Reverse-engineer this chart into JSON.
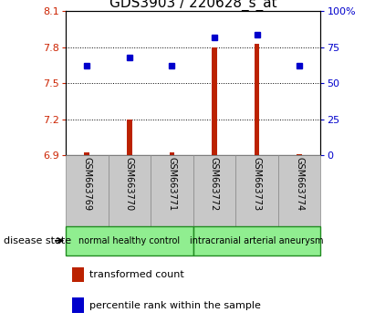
{
  "title": "GDS3903 / 220628_s_at",
  "samples": [
    "GSM663769",
    "GSM663770",
    "GSM663771",
    "GSM663772",
    "GSM663773",
    "GSM663774"
  ],
  "transformed_count": [
    6.92,
    7.2,
    6.92,
    7.8,
    7.83,
    6.91
  ],
  "percentile_rank": [
    62,
    68,
    62,
    82,
    84,
    62
  ],
  "ylim_left": [
    6.9,
    8.1
  ],
  "ylim_right": [
    0,
    100
  ],
  "yticks_left": [
    6.9,
    7.2,
    7.5,
    7.8,
    8.1
  ],
  "yticks_right": [
    0,
    25,
    50,
    75,
    100
  ],
  "bar_color": "#bb2200",
  "dot_color": "#0000cc",
  "groups": [
    {
      "label": "normal healthy control",
      "start": 0,
      "end": 3,
      "color": "#90ee90"
    },
    {
      "label": "intracranial arterial aneurysm",
      "start": 3,
      "end": 6,
      "color": "#90ee90"
    }
  ],
  "group_box_color": "#c8c8c8",
  "disease_state_label": "disease state",
  "legend_bar_label": "transformed count",
  "legend_dot_label": "percentile rank within the sample",
  "title_fontsize": 11,
  "tick_fontsize": 8,
  "left_tick_color": "#cc2200",
  "right_tick_color": "#0000cc",
  "bar_width": 0.12,
  "dot_size": 5
}
